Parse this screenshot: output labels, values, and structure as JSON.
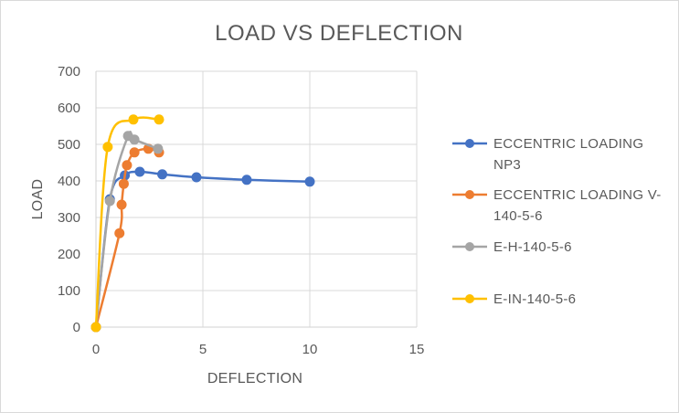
{
  "chart_data": {
    "type": "scatter",
    "title": "LOAD VS DEFLECTION",
    "xlabel": "DEFLECTION",
    "ylabel": "LOAD",
    "xlim": [
      0,
      15
    ],
    "ylim": [
      0,
      700
    ],
    "x_ticks": [
      0,
      5,
      10,
      15
    ],
    "y_ticks": [
      0,
      100,
      200,
      300,
      400,
      500,
      600,
      700
    ],
    "grid": true,
    "smooth_lines": true,
    "legend_position": "right",
    "series": [
      {
        "name": "ECCENTRIC LOADING NP3",
        "legend_lines": [
          "ECCENTRIC LOADING",
          "NP3"
        ],
        "color": "#4472C4",
        "x": [
          0,
          0.65,
          1.35,
          2.05,
          3.1,
          4.7,
          7.05,
          10.0
        ],
        "y": [
          0,
          350,
          415,
          425,
          418,
          410,
          403,
          398
        ]
      },
      {
        "name": "ECCENTRIC LOADING V-140-5-6",
        "legend_lines": [
          "ECCENTRIC LOADING V-",
          "140-5-6"
        ],
        "color": "#ED7D31",
        "x": [
          0,
          1.1,
          1.2,
          1.3,
          1.45,
          1.8,
          2.45,
          2.95
        ],
        "y": [
          0,
          257,
          335,
          392,
          443,
          478,
          488,
          478
        ]
      },
      {
        "name": "E-H-140-5-6",
        "legend_lines": [
          "E-H-140-5-6"
        ],
        "color": "#A5A5A5",
        "x": [
          0,
          0.65,
          1.5,
          1.8,
          2.9
        ],
        "y": [
          0,
          345,
          523,
          513,
          488
        ]
      },
      {
        "name": "E-IN-140-5-6",
        "legend_lines": [
          "E-IN-140-5-6"
        ],
        "color": "#FFC000",
        "x": [
          0,
          0.55,
          1.75,
          2.95
        ],
        "y": [
          0,
          493,
          568,
          568
        ]
      }
    ]
  }
}
